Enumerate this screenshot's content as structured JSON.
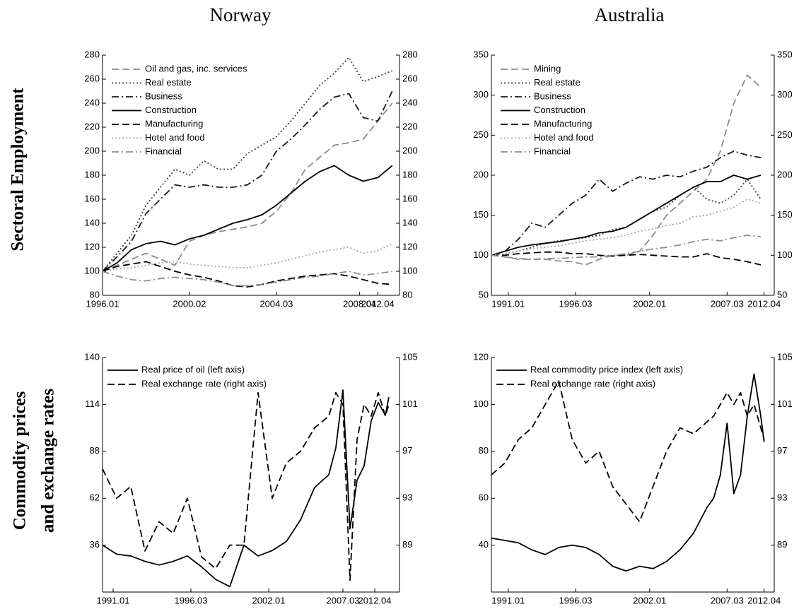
{
  "column_titles": [
    "Norway",
    "Australia"
  ],
  "row_labels": [
    [
      "Sectoral Employment"
    ],
    [
      "Commodity prices",
      "and exchange rates"
    ]
  ],
  "chart_data": [
    {
      "type": "line",
      "x": [
        0,
        4,
        8,
        12,
        16,
        20,
        24,
        28,
        32,
        36,
        40,
        44,
        48,
        52,
        56,
        60,
        64,
        68,
        72,
        76,
        80
      ],
      "xlim": [
        0,
        82
      ],
      "xticks": [
        {
          "value": 0,
          "label": "1996.01"
        },
        {
          "value": 24,
          "label": "2000.02"
        },
        {
          "value": 48,
          "label": "2004.03"
        },
        {
          "value": 71,
          "label": "2008.04"
        },
        {
          "value": 76,
          "label": "2012.04"
        }
      ],
      "ylim": [
        80,
        280
      ],
      "yticks": [
        80,
        100,
        120,
        140,
        160,
        180,
        200,
        220,
        240,
        260,
        280
      ],
      "y2lim": [
        80,
        280
      ],
      "y2ticks": [
        80,
        100,
        120,
        140,
        160,
        180,
        200,
        220,
        240,
        260,
        280
      ],
      "legend": "upper left",
      "series": [
        {
          "name": "Oil and gas, inc. services",
          "color": "#8c8c8c",
          "dash": "dashed",
          "values": [
            100,
            105,
            110,
            115,
            110,
            105,
            125,
            130,
            133,
            135,
            137,
            140,
            150,
            165,
            185,
            195,
            205,
            207,
            210,
            225,
            240
          ]
        },
        {
          "name": "Real estate",
          "color": "#3a3a3a",
          "dash": "dotted",
          "values": [
            100,
            115,
            130,
            155,
            170,
            185,
            180,
            192,
            185,
            185,
            198,
            205,
            212,
            225,
            240,
            255,
            265,
            278,
            258,
            262,
            267
          ]
        },
        {
          "name": "Business",
          "color": "#1a1a1a",
          "dash": "dashdot",
          "values": [
            100,
            112,
            125,
            148,
            160,
            172,
            170,
            172,
            170,
            170,
            172,
            180,
            200,
            210,
            222,
            235,
            245,
            248,
            228,
            225,
            250
          ]
        },
        {
          "name": "Construction",
          "color": "#000000",
          "dash": "solid",
          "values": [
            100,
            107,
            118,
            123,
            125,
            122,
            127,
            130,
            135,
            140,
            143,
            147,
            155,
            165,
            175,
            183,
            188,
            180,
            175,
            178,
            188
          ]
        },
        {
          "name": "Manufacturing",
          "color": "#000000",
          "dash": "dashed",
          "values": [
            100,
            104,
            106,
            108,
            104,
            100,
            97,
            95,
            92,
            88,
            87,
            89,
            92,
            94,
            96,
            97,
            98,
            96,
            93,
            90,
            89
          ]
        },
        {
          "name": "Hotel and food",
          "color": "#a8a8a8",
          "dash": "dotted",
          "values": [
            100,
            102,
            103,
            105,
            107,
            108,
            106,
            105,
            104,
            103,
            103,
            105,
            107,
            110,
            113,
            116,
            118,
            120,
            115,
            117,
            123
          ]
        },
        {
          "name": "Financial",
          "color": "#8c8c8c",
          "dash": "dashdot",
          "values": [
            100,
            96,
            93,
            92,
            94,
            95,
            94,
            93,
            91,
            88,
            88,
            89,
            91,
            93,
            95,
            96,
            98,
            100,
            97,
            98,
            100
          ]
        }
      ]
    },
    {
      "type": "line",
      "x": [
        0,
        4,
        8,
        12,
        16,
        20,
        24,
        28,
        32,
        36,
        40,
        44,
        48,
        52,
        56,
        60,
        64,
        68,
        72,
        76,
        80
      ],
      "xlim": [
        0,
        84
      ],
      "xticks": [
        {
          "value": 5,
          "label": "1991.01"
        },
        {
          "value": 25,
          "label": "1996.03"
        },
        {
          "value": 47,
          "label": "2002.01"
        },
        {
          "value": 70,
          "label": "2007.03"
        },
        {
          "value": 81,
          "label": "2012.04"
        }
      ],
      "ylim": [
        50,
        350
      ],
      "yticks": [
        50,
        100,
        150,
        200,
        250,
        300,
        350
      ],
      "y2lim": [
        50,
        350
      ],
      "y2ticks": [
        50,
        100,
        150,
        200,
        250,
        300,
        350
      ],
      "legend": "upper left",
      "series": [
        {
          "name": "Mining",
          "color": "#8c8c8c",
          "dash": "dashed",
          "values": [
            100,
            98,
            95,
            95,
            95,
            93,
            92,
            88,
            95,
            100,
            100,
            105,
            125,
            150,
            165,
            180,
            195,
            230,
            290,
            325,
            310
          ]
        },
        {
          "name": "Real estate",
          "color": "#3a3a3a",
          "dash": "dotted",
          "values": [
            100,
            102,
            105,
            110,
            115,
            118,
            120,
            122,
            125,
            132,
            135,
            145,
            155,
            160,
            175,
            185,
            170,
            165,
            175,
            195,
            170
          ]
        },
        {
          "name": "Business",
          "color": "#1a1a1a",
          "dash": "dashdot",
          "values": [
            100,
            105,
            120,
            140,
            135,
            150,
            165,
            175,
            195,
            180,
            190,
            198,
            195,
            200,
            198,
            205,
            210,
            222,
            230,
            225,
            222
          ]
        },
        {
          "name": "Construction",
          "color": "#000000",
          "dash": "solid",
          "values": [
            100,
            105,
            110,
            113,
            115,
            117,
            120,
            123,
            128,
            130,
            135,
            145,
            155,
            165,
            175,
            185,
            192,
            192,
            200,
            195,
            200
          ]
        },
        {
          "name": "Manufacturing",
          "color": "#000000",
          "dash": "dashed",
          "values": [
            100,
            100,
            102,
            103,
            104,
            104,
            102,
            102,
            100,
            99,
            100,
            101,
            100,
            99,
            98,
            98,
            102,
            97,
            95,
            92,
            88
          ]
        },
        {
          "name": "Hotel and food",
          "color": "#a8a8a8",
          "dash": "dotted",
          "values": [
            100,
            102,
            105,
            108,
            110,
            112,
            115,
            118,
            120,
            122,
            125,
            130,
            133,
            137,
            140,
            148,
            150,
            155,
            160,
            170,
            165
          ]
        },
        {
          "name": "Financial",
          "color": "#8c8c8c",
          "dash": "dashdot",
          "values": [
            100,
            98,
            96,
            95,
            96,
            96,
            97,
            98,
            98,
            100,
            102,
            105,
            108,
            110,
            113,
            117,
            120,
            118,
            122,
            125,
            123
          ]
        }
      ]
    },
    {
      "type": "line",
      "x": [
        0,
        4,
        8,
        12,
        16,
        20,
        24,
        28,
        32,
        36,
        40,
        44,
        48,
        52,
        56,
        60,
        64,
        66,
        68,
        70,
        72,
        74,
        76,
        78,
        80,
        81
      ],
      "xlim": [
        0,
        84
      ],
      "xticks": [
        {
          "value": 3,
          "label": "1991.01"
        },
        {
          "value": 25,
          "label": "1996.03"
        },
        {
          "value": 47,
          "label": "2002.01"
        },
        {
          "value": 68,
          "label": "2007.03"
        },
        {
          "value": 77,
          "label": "2012.04"
        }
      ],
      "ylim": [
        10,
        140
      ],
      "yticks": [
        36,
        62,
        88,
        114,
        140
      ],
      "y2lim": [
        85,
        105
      ],
      "y2ticks": [
        89,
        93,
        97,
        101,
        105
      ],
      "legend": "upper left",
      "series": [
        {
          "name": "Real price of oil (left axis)",
          "color": "#000000",
          "dash": "solid",
          "values": [
            36,
            31,
            30,
            27,
            25,
            27,
            30,
            24,
            17,
            13,
            36,
            30,
            33,
            38,
            50,
            68,
            75,
            90,
            122,
            45,
            72,
            80,
            105,
            115,
            108,
            118
          ]
        },
        {
          "name": "Real exchange rate (right axis)",
          "color": "#000000",
          "dash": "dashed",
          "axis": "y2",
          "values": [
            95.5,
            93,
            94,
            88.5,
            91,
            90,
            93,
            88,
            87,
            89,
            89,
            102,
            93,
            96,
            97,
            99,
            100,
            102,
            101,
            86,
            98,
            101,
            100,
            102,
            100,
            101
          ]
        }
      ]
    },
    {
      "type": "line",
      "x": [
        0,
        4,
        8,
        12,
        16,
        20,
        24,
        28,
        32,
        36,
        40,
        44,
        48,
        52,
        56,
        60,
        64,
        66,
        68,
        70,
        72,
        74,
        76,
        78,
        80,
        81
      ],
      "xlim": [
        0,
        84
      ],
      "xticks": [
        {
          "value": 5,
          "label": "1991.01"
        },
        {
          "value": 25,
          "label": "1996.03"
        },
        {
          "value": 47,
          "label": "2002.01"
        },
        {
          "value": 70,
          "label": "2007.03"
        },
        {
          "value": 81,
          "label": "2012.04"
        }
      ],
      "ylim": [
        20,
        120
      ],
      "yticks": [
        40,
        60,
        80,
        100,
        120
      ],
      "y2lim": [
        85,
        105
      ],
      "y2ticks": [
        89,
        93,
        97,
        101,
        105
      ],
      "legend": "upper left",
      "series": [
        {
          "name": "Real commodity price index (left axis)",
          "color": "#000000",
          "dash": "solid",
          "values": [
            43,
            42,
            41,
            38,
            36,
            39,
            40,
            39,
            36,
            31,
            29,
            31,
            30,
            33,
            38,
            45,
            56,
            60,
            70,
            92,
            62,
            70,
            95,
            113,
            95,
            84
          ]
        },
        {
          "name": "Real exchange rate (right axis)",
          "color": "#000000",
          "dash": "dashed",
          "axis": "y2",
          "values": [
            95,
            96,
            98,
            99,
            101,
            103,
            98,
            96,
            97,
            94,
            92.5,
            91,
            94,
            97,
            99,
            98.5,
            99.5,
            100,
            101,
            102,
            101,
            102,
            100,
            101,
            99,
            98
          ]
        }
      ]
    }
  ]
}
